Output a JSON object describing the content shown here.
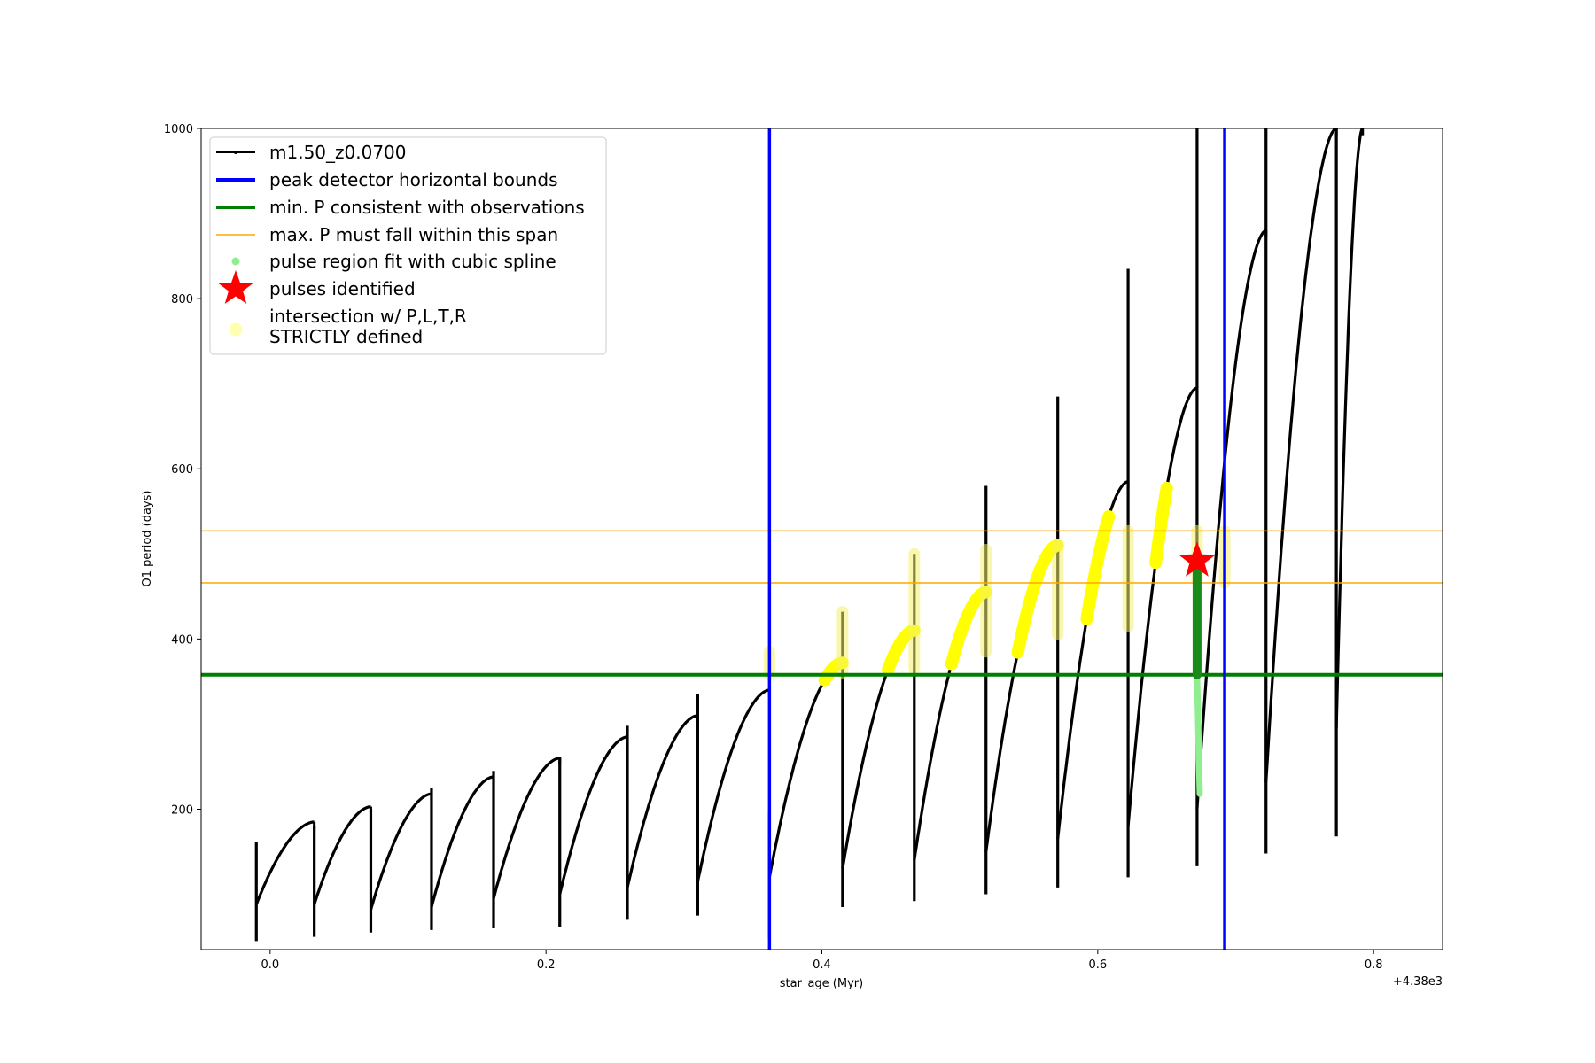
{
  "chart_data": {
    "type": "line",
    "xlabel": "star_age (Myr)",
    "ylabel": "O1 period (days)",
    "offset_label": "+4.38e3",
    "xlim": [
      -0.05,
      0.85
    ],
    "ylim": [
      35,
      1000
    ],
    "x_ticks": [
      0.0,
      0.2,
      0.4,
      0.6,
      0.8
    ],
    "x_tick_labels": [
      "0.0",
      "0.2",
      "0.4",
      "0.6",
      "0.8"
    ],
    "y_ticks": [
      200,
      400,
      600,
      800,
      1000
    ],
    "y_tick_labels": [
      "200",
      "400",
      "600",
      "800",
      "1000"
    ],
    "grid": false,
    "legend_position": "upper-left",
    "legend": [
      {
        "label": "m1.50_z0.0700",
        "kind": "line-marker",
        "color": "#000000"
      },
      {
        "label": "peak detector horizontal bounds",
        "kind": "line",
        "color": "#0000ff"
      },
      {
        "label": "min. P consistent with observations",
        "kind": "line",
        "color": "#008000"
      },
      {
        "label": "max. P must fall within this span",
        "kind": "line",
        "color": "#ffa500"
      },
      {
        "label": "pulse region fit with cubic spline",
        "kind": "dot",
        "color": "#90ee90"
      },
      {
        "label": "pulses identified",
        "kind": "star",
        "color": "#ff0000"
      },
      {
        "label": "intersection w/ P,L,T,R",
        "label2": "STRICTLY defined",
        "kind": "dot",
        "color": "#ffffb0"
      }
    ],
    "vlines": [
      0.362,
      0.692
    ],
    "min_period": 358,
    "max_period_span": [
      466,
      527
    ],
    "pulses": [
      {
        "t0": -0.01,
        "t1": 0.032,
        "p0": 88,
        "p1": 185,
        "spike_hi": 162,
        "spike_lo": 45
      },
      {
        "t0": 0.032,
        "t1": 0.073,
        "p0": 88,
        "p1": 203,
        "spike_hi": 180,
        "spike_lo": 50
      },
      {
        "t0": 0.073,
        "t1": 0.117,
        "p0": 82,
        "p1": 218,
        "spike_hi": 200,
        "spike_lo": 55
      },
      {
        "t0": 0.117,
        "t1": 0.162,
        "p0": 85,
        "p1": 238,
        "spike_hi": 225,
        "spike_lo": 58
      },
      {
        "t0": 0.162,
        "t1": 0.21,
        "p0": 95,
        "p1": 260,
        "spike_hi": 245,
        "spike_lo": 60
      },
      {
        "t0": 0.21,
        "t1": 0.259,
        "p0": 100,
        "p1": 285,
        "spike_hi": 262,
        "spike_lo": 62
      },
      {
        "t0": 0.259,
        "t1": 0.31,
        "p0": 108,
        "p1": 310,
        "spike_hi": 298,
        "spike_lo": 70
      },
      {
        "t0": 0.31,
        "t1": 0.362,
        "p0": 115,
        "p1": 340,
        "spike_hi": 335,
        "spike_lo": 75
      },
      {
        "t0": 0.362,
        "t1": 0.415,
        "p0": 120,
        "p1": 372,
        "spike_hi": 198,
        "spike_lo": 48
      },
      {
        "t0": 0.415,
        "t1": 0.467,
        "p0": 130,
        "p1": 410,
        "spike_hi": 432,
        "spike_lo": 85
      },
      {
        "t0": 0.467,
        "t1": 0.519,
        "p0": 140,
        "p1": 455,
        "spike_hi": 500,
        "spike_lo": 92
      },
      {
        "t0": 0.519,
        "t1": 0.571,
        "p0": 150,
        "p1": 510,
        "spike_hi": 580,
        "spike_lo": 100
      },
      {
        "t0": 0.571,
        "t1": 0.622,
        "p0": 165,
        "p1": 585,
        "spike_hi": 685,
        "spike_lo": 108
      },
      {
        "t0": 0.622,
        "t1": 0.672,
        "p0": 180,
        "p1": 695,
        "spike_hi": 835,
        "spike_lo": 120
      },
      {
        "t0": 0.672,
        "t1": 0.722,
        "p0": 200,
        "p1": 880,
        "spike_hi": 1000,
        "spike_lo": 133
      },
      {
        "t0": 0.722,
        "t1": 0.773,
        "p0": 232,
        "p1": 1000,
        "spike_hi": 1000,
        "spike_lo": 148
      },
      {
        "t0": 0.773,
        "t1": 0.792,
        "p0": 295,
        "p1": 1000,
        "spike_hi": 1000,
        "spike_lo": 168
      }
    ],
    "spline_region": {
      "t": 0.672,
      "p_min": 218,
      "p_max": 495
    },
    "pulse_identified": {
      "t": 0.672,
      "p": 492
    },
    "intersection_segments": [
      {
        "t0": 0.362,
        "t1": 0.362,
        "p0": 358,
        "p1": 385
      },
      {
        "t0": 0.402,
        "t1": 0.415,
        "p0": 358,
        "p1": 372
      },
      {
        "t0": 0.415,
        "t1": 0.415,
        "p0": 360,
        "p1": 432
      },
      {
        "t0": 0.448,
        "t1": 0.467,
        "p0": 358,
        "p1": 410
      },
      {
        "t0": 0.467,
        "t1": 0.467,
        "p0": 365,
        "p1": 500
      },
      {
        "t0": 0.494,
        "t1": 0.519,
        "p0": 370,
        "p1": 455
      },
      {
        "t0": 0.519,
        "t1": 0.519,
        "p0": 385,
        "p1": 505
      },
      {
        "t0": 0.542,
        "t1": 0.571,
        "p0": 380,
        "p1": 510
      },
      {
        "t0": 0.571,
        "t1": 0.571,
        "p0": 405,
        "p1": 510
      },
      {
        "t0": 0.592,
        "t1": 0.608,
        "p0": 395,
        "p1": 527
      },
      {
        "t0": 0.622,
        "t1": 0.622,
        "p0": 415,
        "p1": 527
      },
      {
        "t0": 0.642,
        "t1": 0.65,
        "p0": 425,
        "p1": 527
      },
      {
        "t0": 0.672,
        "t1": 0.672,
        "p0": 470,
        "p1": 527
      },
      {
        "t0": 0.692,
        "t1": 0.692,
        "p0": 466,
        "p1": 527
      }
    ]
  }
}
